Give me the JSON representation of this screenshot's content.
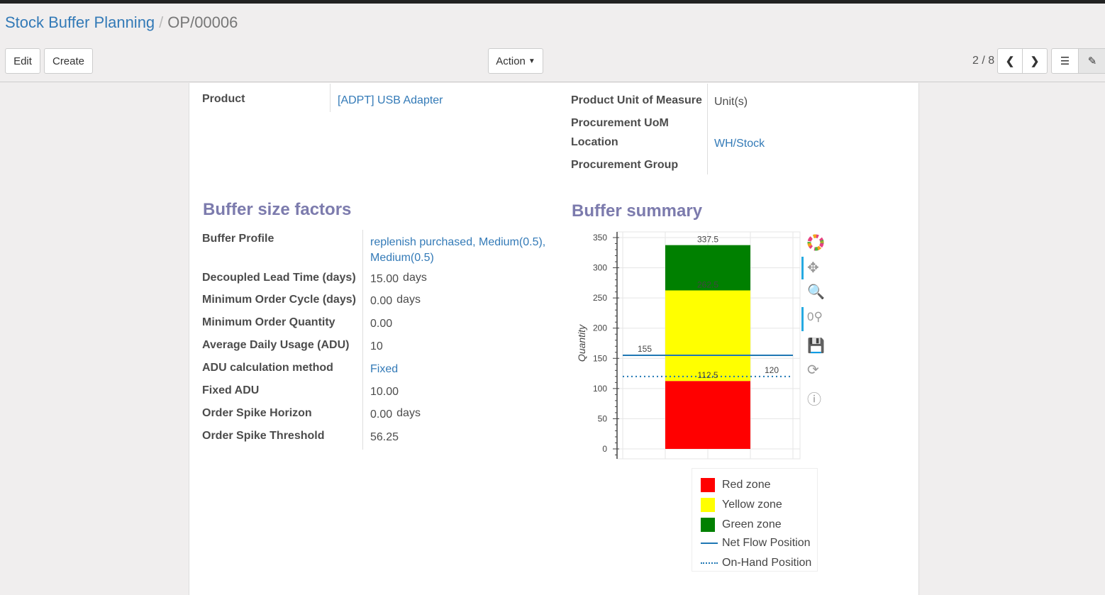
{
  "breadcrumb": {
    "parent": "Stock Buffer Planning",
    "current": "OP/00006"
  },
  "toolbar": {
    "edit": "Edit",
    "create": "Create",
    "action": "Action",
    "pager": "2 / 8"
  },
  "form": {
    "product_label": "Product",
    "product_value": "[ADPT] USB Adapter",
    "uom_label": "Product Unit of Measure",
    "uom_value": "Unit(s)",
    "proc_uom_label": "Procurement UoM",
    "location_label": "Location",
    "location_value": "WH/Stock",
    "proc_group_label": "Procurement Group"
  },
  "factors": {
    "title": "Buffer size factors",
    "rows": [
      {
        "label": "Buffer Profile",
        "value": "replenish purchased, Medium(0.5),",
        "value2": "Medium(0.5)",
        "link": true
      },
      {
        "label": "Decoupled Lead Time (days)",
        "value": "15.00",
        "unit": "days"
      },
      {
        "label": "Minimum Order Cycle (days)",
        "value": "0.00",
        "unit": "days"
      },
      {
        "label": "Minimum Order Quantity",
        "value": "0.00"
      },
      {
        "label": "Average Daily Usage (ADU)",
        "value": "10"
      },
      {
        "label": "ADU calculation method",
        "value": "Fixed",
        "link": true
      },
      {
        "label": "Fixed ADU",
        "value": "10.00"
      },
      {
        "label": "Order Spike Horizon",
        "value": "0.00",
        "unit": "days"
      },
      {
        "label": "Order Spike Threshold",
        "value": "56.25"
      }
    ]
  },
  "summary": {
    "title": "Buffer summary"
  },
  "chart_data": {
    "type": "bar",
    "stacked": true,
    "ylabel": "Quantity",
    "ylim": [
      0,
      350
    ],
    "yticks": [
      0,
      50,
      100,
      150,
      200,
      250,
      300,
      350
    ],
    "grid": true,
    "segments": [
      {
        "name": "Red zone",
        "from": 0,
        "to": 112.5,
        "color": "#ff0000",
        "label": "112.5"
      },
      {
        "name": "Yellow zone",
        "from": 112.5,
        "to": 262.5,
        "color": "#ffff00",
        "label": "262.5"
      },
      {
        "name": "Green zone",
        "from": 262.5,
        "to": 337.5,
        "color": "#008000",
        "label": "337.5"
      }
    ],
    "lines": [
      {
        "name": "Net Flow Position",
        "value": 155,
        "label": "155",
        "style": "solid",
        "color": "#1f77b4"
      },
      {
        "name": "On-Hand Position",
        "value": 120,
        "label": "120",
        "style": "dotted",
        "color": "#1f77b4"
      }
    ],
    "legend_position": "bottom"
  }
}
